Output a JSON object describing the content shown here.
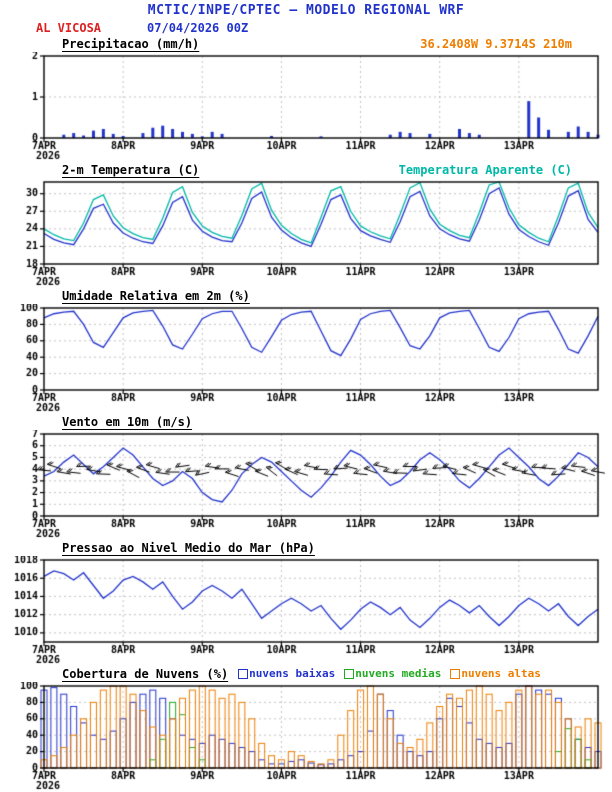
{
  "header": {
    "title": "MCTIC/INPE/CPTEC — MODELO REGIONAL WRF",
    "station": "AL VICOSA",
    "run": "07/04/2026 00Z",
    "location": "36.2408W 9.3714S 210m"
  },
  "colors": {
    "blue": "#2233cc",
    "cyan": "#00b8a8",
    "orange": "#ee7e00",
    "red": "#dd2222",
    "green": "#22aa22",
    "black": "#000000"
  },
  "x_axis": {
    "start_hour": 0,
    "end_hour": 168,
    "step_hours": 3,
    "ticks": [
      {
        "hour": 0,
        "label": "7APR",
        "sublabel": "2026"
      },
      {
        "hour": 24,
        "label": "8APR"
      },
      {
        "hour": 48,
        "label": "9APR"
      },
      {
        "hour": 72,
        "label": "10APR"
      },
      {
        "hour": 96,
        "label": "11APR"
      },
      {
        "hour": 120,
        "label": "12APR"
      },
      {
        "hour": 144,
        "label": "13APR"
      }
    ]
  },
  "chart_data": [
    {
      "type": "bar",
      "title": "Precipitacao (mm/h)",
      "ylim": [
        0,
        2
      ],
      "yticks": [
        0,
        1,
        2
      ],
      "series": [
        {
          "name": "Precipitacao",
          "type": "bar",
          "color": "#2233cc",
          "values": [
            0,
            0,
            0.08,
            0.12,
            0.06,
            0.18,
            0.22,
            0.1,
            0.05,
            0,
            0.12,
            0.25,
            0.3,
            0.22,
            0.15,
            0.1,
            0.04,
            0.15,
            0.1,
            0,
            0,
            0,
            0,
            0.05,
            0,
            0,
            0,
            0,
            0.04,
            0,
            0,
            0,
            0,
            0,
            0,
            0.08,
            0.15,
            0.12,
            0,
            0.1,
            0,
            0,
            0.22,
            0.12,
            0.08,
            0,
            0,
            0,
            0,
            0.9,
            0.5,
            0.2,
            0,
            0.15,
            0.28,
            0.15,
            0.08
          ]
        }
      ]
    },
    {
      "type": "line",
      "title": "2-m Temperatura (C)",
      "ylim": [
        18,
        32
      ],
      "yticks": [
        18,
        21,
        24,
        27,
        30
      ],
      "series": [
        {
          "name": "2-m Temperatura (C)",
          "type": "line",
          "color": "#2233cc",
          "values": [
            23.2,
            22.2,
            21.6,
            21.3,
            24.0,
            27.5,
            28.2,
            25.0,
            23.3,
            22.4,
            21.8,
            21.5,
            24.5,
            28.5,
            29.5,
            25.5,
            23.6,
            22.6,
            22.0,
            21.8,
            25.0,
            29.2,
            30.3,
            26.0,
            23.8,
            22.5,
            21.6,
            21.0,
            24.8,
            29.0,
            29.8,
            25.8,
            23.7,
            22.8,
            22.2,
            21.7,
            25.2,
            29.5,
            30.4,
            26.2,
            24.0,
            23.0,
            22.3,
            21.9,
            25.5,
            30.0,
            31.0,
            26.5,
            23.9,
            22.7,
            21.8,
            21.2,
            25.0,
            29.6,
            30.5,
            25.6,
            23.4
          ]
        },
        {
          "name": "Temperatura Aparente (C)",
          "type": "line",
          "color": "#00b8a8",
          "values": [
            24.0,
            23.0,
            22.3,
            22.0,
            25.0,
            29.0,
            29.8,
            26.2,
            24.2,
            23.2,
            22.5,
            22.2,
            25.8,
            30.2,
            31.2,
            26.8,
            24.5,
            23.4,
            22.7,
            22.4,
            26.3,
            30.8,
            31.8,
            27.2,
            24.6,
            23.2,
            22.2,
            21.6,
            26.0,
            30.5,
            31.2,
            27.0,
            24.5,
            23.5,
            22.8,
            22.3,
            26.5,
            31.0,
            31.9,
            27.4,
            24.8,
            23.7,
            22.9,
            22.5,
            26.8,
            31.5,
            32.0,
            27.6,
            24.7,
            23.4,
            22.4,
            21.8,
            26.2,
            31.0,
            31.8,
            26.8,
            24.2
          ]
        }
      ]
    },
    {
      "type": "line",
      "title": "Umidade Relativa em 2m (%)",
      "ylim": [
        0,
        100
      ],
      "yticks": [
        0,
        20,
        40,
        60,
        80,
        100
      ],
      "series": [
        {
          "name": "Umidade Relativa",
          "type": "line",
          "color": "#2233cc",
          "values": [
            88,
            93,
            95,
            96,
            80,
            58,
            52,
            70,
            88,
            94,
            96,
            97,
            78,
            55,
            50,
            68,
            87,
            93,
            96,
            96,
            75,
            52,
            46,
            65,
            85,
            92,
            95,
            96,
            72,
            48,
            42,
            62,
            86,
            93,
            96,
            97,
            76,
            54,
            50,
            66,
            88,
            94,
            96,
            97,
            75,
            52,
            47,
            64,
            87,
            93,
            95,
            96,
            74,
            50,
            45,
            66,
            90
          ]
        }
      ]
    },
    {
      "type": "line",
      "title": "Vento em 10m (m/s)",
      "ylim": [
        0,
        7
      ],
      "yticks": [
        0,
        1,
        2,
        3,
        4,
        5,
        6,
        7
      ],
      "barbs": {
        "y": 3.9,
        "step_hours": 6,
        "directions": [
          185,
          190,
          178,
          182,
          195,
          200,
          188,
          172,
          168,
          180,
          190,
          202,
          210,
          196,
          182,
          176,
          186,
          192,
          182,
          172,
          176,
          186,
          196,
          202,
          190,
          182,
          176,
          186,
          190
        ]
      },
      "series": [
        {
          "name": "Vento em 10m",
          "type": "line",
          "color": "#2233cc",
          "values": [
            3.4,
            3.8,
            4.6,
            5.2,
            4.4,
            3.6,
            4.2,
            5.0,
            5.8,
            5.2,
            4.2,
            3.2,
            2.6,
            3.0,
            3.8,
            3.2,
            2.0,
            1.4,
            1.2,
            2.2,
            3.6,
            4.4,
            5.0,
            4.6,
            3.8,
            3.0,
            2.2,
            1.6,
            2.4,
            3.4,
            4.6,
            5.6,
            5.2,
            4.4,
            3.4,
            2.6,
            3.0,
            3.8,
            4.8,
            5.4,
            4.8,
            4.0,
            3.0,
            2.4,
            3.2,
            4.2,
            5.2,
            5.8,
            5.0,
            4.2,
            3.2,
            2.6,
            3.4,
            4.4,
            5.4,
            5.0,
            4.2
          ]
        }
      ]
    },
    {
      "type": "line",
      "title": "Pressao ao Nivel Medio do Mar (hPa)",
      "ylim": [
        1009,
        1018
      ],
      "yticks": [
        1010,
        1012,
        1014,
        1016,
        1018
      ],
      "series": [
        {
          "name": "Pressao ao Nivel Medio do Mar",
          "type": "line",
          "color": "#2233cc",
          "values": [
            1016.2,
            1016.8,
            1016.5,
            1015.8,
            1016.6,
            1015.2,
            1013.8,
            1014.6,
            1015.8,
            1016.2,
            1015.6,
            1014.8,
            1015.6,
            1014.0,
            1012.6,
            1013.4,
            1014.6,
            1015.2,
            1014.6,
            1013.8,
            1014.8,
            1013.2,
            1011.6,
            1012.4,
            1013.2,
            1013.8,
            1013.2,
            1012.4,
            1013.0,
            1011.6,
            1010.4,
            1011.4,
            1012.6,
            1013.4,
            1012.8,
            1012.0,
            1012.8,
            1011.4,
            1010.6,
            1011.6,
            1012.8,
            1013.6,
            1013.0,
            1012.2,
            1013.0,
            1011.8,
            1010.8,
            1011.8,
            1013.0,
            1013.8,
            1013.2,
            1012.4,
            1013.2,
            1011.8,
            1010.8,
            1011.8,
            1012.6
          ]
        }
      ]
    },
    {
      "type": "outline-bar",
      "title": "Cobertura de Nuvens (%)",
      "ylim": [
        0,
        100
      ],
      "yticks": [
        0,
        20,
        40,
        60,
        80,
        100
      ],
      "legend": [
        {
          "label": "nuvens baixas",
          "color": "#2233cc"
        },
        {
          "label": "nuvens medias",
          "color": "#22aa22"
        },
        {
          "label": "nuvens altas",
          "color": "#ee7e00"
        }
      ],
      "series": [
        {
          "name": "nuvens baixas",
          "type": "outline-bar",
          "color": "#2233cc",
          "values": [
            95,
            98,
            90,
            75,
            55,
            40,
            35,
            45,
            60,
            80,
            90,
            95,
            85,
            60,
            40,
            35,
            30,
            40,
            35,
            30,
            25,
            20,
            10,
            5,
            5,
            8,
            10,
            6,
            4,
            5,
            10,
            15,
            20,
            45,
            90,
            70,
            40,
            20,
            15,
            20,
            60,
            85,
            75,
            55,
            35,
            30,
            25,
            30,
            90,
            100,
            95,
            90,
            85,
            60,
            35,
            25,
            20
          ]
        },
        {
          "name": "nuvens medias",
          "type": "outline-bar",
          "color": "#22aa22",
          "values": [
            0,
            0,
            0,
            0,
            0,
            0,
            0,
            0,
            0,
            0,
            0,
            10,
            35,
            80,
            65,
            25,
            10,
            0,
            0,
            0,
            0,
            0,
            0,
            0,
            0,
            0,
            0,
            0,
            0,
            0,
            0,
            0,
            0,
            0,
            0,
            0,
            0,
            0,
            0,
            0,
            0,
            0,
            0,
            0,
            0,
            0,
            0,
            0,
            0,
            0,
            0,
            0,
            20,
            48,
            35,
            10,
            0
          ]
        },
        {
          "name": "nuvens altas",
          "type": "outline-bar",
          "color": "#ee7e00",
          "values": [
            10,
            15,
            25,
            40,
            60,
            80,
            95,
            100,
            100,
            90,
            70,
            50,
            40,
            60,
            85,
            95,
            100,
            95,
            85,
            90,
            80,
            60,
            30,
            15,
            10,
            20,
            15,
            8,
            5,
            10,
            40,
            70,
            95,
            100,
            90,
            60,
            30,
            25,
            35,
            55,
            75,
            90,
            85,
            95,
            100,
            90,
            70,
            80,
            95,
            100,
            90,
            95,
            80,
            60,
            50,
            60,
            55
          ]
        }
      ]
    }
  ]
}
